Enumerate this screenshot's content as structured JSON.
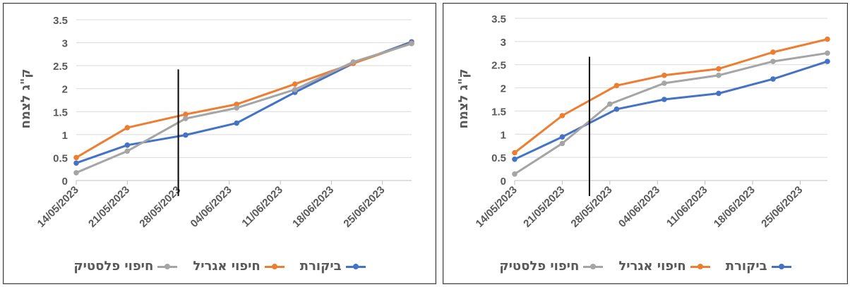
{
  "colors": {
    "series": [
      "#4472C4",
      "#ED7D31",
      "#A5A5A5"
    ],
    "gridline": "#D9D9D9",
    "tick_text": "#595959",
    "marker_line": "#000000"
  },
  "chart_data": [
    {
      "type": "line",
      "ylabel": "ק\"ג לצמח",
      "ylim": [
        0,
        3.5
      ],
      "yticks": [
        "0",
        "0.5",
        "1",
        "1.5",
        "2",
        "2.5",
        "3",
        "3.5"
      ],
      "xlim": [
        "2023-05-14",
        "2023-06-29"
      ],
      "xticks": [
        "14/05/2023",
        "21/05/2023",
        "28/05/2023",
        "04/06/2023",
        "11/06/2023",
        "18/06/2023",
        "25/06/2023"
      ],
      "grid": "horizontal",
      "legend_position": "bottom",
      "vertical_marker": {
        "date": "2023-05-28",
        "y_top": 2.42
      },
      "series": [
        {
          "name": "ביקורת",
          "points": [
            [
              "2023-05-14",
              0.38
            ],
            [
              "2023-05-21",
              0.77
            ],
            [
              "2023-05-29",
              0.99
            ],
            [
              "2023-06-05",
              1.25
            ],
            [
              "2023-06-13",
              1.92
            ],
            [
              "2023-06-21",
              2.55
            ],
            [
              "2023-06-29",
              3.02
            ]
          ]
        },
        {
          "name": "חיפוי אגריל",
          "points": [
            [
              "2023-05-14",
              0.5
            ],
            [
              "2023-05-21",
              1.15
            ],
            [
              "2023-05-29",
              1.44
            ],
            [
              "2023-06-05",
              1.66
            ],
            [
              "2023-06-13",
              2.1
            ],
            [
              "2023-06-21",
              2.55
            ],
            [
              "2023-06-29",
              2.99
            ]
          ]
        },
        {
          "name": "חיפוי פלסטיק",
          "points": [
            [
              "2023-05-14",
              0.17
            ],
            [
              "2023-05-21",
              0.64
            ],
            [
              "2023-05-29",
              1.35
            ],
            [
              "2023-06-05",
              1.58
            ],
            [
              "2023-06-13",
              1.98
            ],
            [
              "2023-06-21",
              2.58
            ],
            [
              "2023-06-29",
              2.98
            ]
          ]
        }
      ]
    },
    {
      "type": "line",
      "ylabel": "ק\"ג לצמח",
      "ylim": [
        0,
        3.5
      ],
      "yticks": [
        "0",
        "0.5",
        "1",
        "1.5",
        "2",
        "2.5",
        "3",
        "3.5"
      ],
      "xlim": [
        "2023-05-14",
        "2023-06-29"
      ],
      "xticks": [
        "14/05/2023",
        "21/05/2023",
        "28/05/2023",
        "04/06/2023",
        "11/06/2023",
        "18/06/2023",
        "25/06/2023"
      ],
      "grid": "horizontal",
      "legend_position": "bottom",
      "vertical_marker": {
        "date": "2023-05-25",
        "y_top": 2.67
      },
      "series": [
        {
          "name": "ביקורת",
          "points": [
            [
              "2023-05-14",
              0.46
            ],
            [
              "2023-05-21",
              0.94
            ],
            [
              "2023-05-29",
              1.54
            ],
            [
              "2023-06-05",
              1.75
            ],
            [
              "2023-06-13",
              1.88
            ],
            [
              "2023-06-21",
              2.19
            ],
            [
              "2023-06-29",
              2.57
            ]
          ]
        },
        {
          "name": "חיפוי אגריל",
          "points": [
            [
              "2023-05-14",
              0.6
            ],
            [
              "2023-05-21",
              1.4
            ],
            [
              "2023-05-29",
              2.05
            ],
            [
              "2023-06-05",
              2.27
            ],
            [
              "2023-06-13",
              2.41
            ],
            [
              "2023-06-21",
              2.77
            ],
            [
              "2023-06-29",
              3.05
            ]
          ]
        },
        {
          "name": "חיפוי פלסטיק",
          "points": [
            [
              "2023-05-14",
              0.14
            ],
            [
              "2023-05-21",
              0.8
            ],
            [
              "2023-05-28",
              1.65
            ],
            [
              "2023-06-05",
              2.1
            ],
            [
              "2023-06-13",
              2.27
            ],
            [
              "2023-06-21",
              2.57
            ],
            [
              "2023-06-29",
              2.75
            ]
          ]
        }
      ]
    }
  ]
}
